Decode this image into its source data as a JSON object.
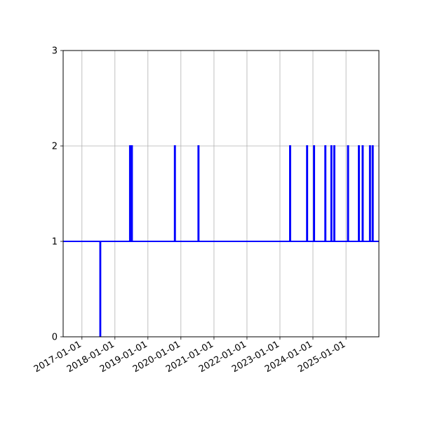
{
  "chart_data": {
    "type": "line",
    "title": "",
    "xlabel": "",
    "ylabel": "",
    "x_axis_type": "date",
    "xlim": [
      "2016-06-07",
      "2025-12-31"
    ],
    "ylim": [
      0,
      3
    ],
    "yticks": [
      0,
      1,
      2,
      3
    ],
    "xticks": [
      "2017-01-01",
      "2018-01-01",
      "2019-01-01",
      "2020-01-01",
      "2021-01-01",
      "2022-01-01",
      "2023-01-01",
      "2024-01-01",
      "2025-01-01"
    ],
    "grid": true,
    "line_color": "#0000ff",
    "series": [
      {
        "x": [
          "2016-06-07",
          "2017-07-20",
          "2017-07-20",
          "2017-07-26",
          "2017-07-26",
          "2018-06-14",
          "2018-06-14",
          "2018-06-22",
          "2018-06-22",
          "2018-06-27",
          "2018-06-27",
          "2018-07-01",
          "2018-07-01",
          "2018-07-06",
          "2018-07-06",
          "2018-07-11",
          "2018-07-11",
          "2019-10-23",
          "2019-10-23",
          "2019-10-30",
          "2019-10-30",
          "2020-07-10",
          "2020-07-10",
          "2020-07-17",
          "2020-07-17",
          "2023-04-20",
          "2023-04-20",
          "2023-04-27",
          "2023-04-27",
          "2023-10-25",
          "2023-10-25",
          "2023-11-01",
          "2023-11-01",
          "2024-01-10",
          "2024-01-10",
          "2024-01-17",
          "2024-01-17",
          "2024-05-14",
          "2024-05-14",
          "2024-05-21",
          "2024-05-21",
          "2024-07-20",
          "2024-07-20",
          "2024-07-27",
          "2024-07-27",
          "2024-08-21",
          "2024-08-21",
          "2024-08-28",
          "2024-08-28",
          "2025-01-20",
          "2025-01-20",
          "2025-01-27",
          "2025-01-27",
          "2025-05-20",
          "2025-05-20",
          "2025-05-27",
          "2025-05-27",
          "2025-07-01",
          "2025-07-01",
          "2025-07-08",
          "2025-07-08",
          "2025-09-20",
          "2025-09-20",
          "2025-09-27",
          "2025-09-27",
          "2025-10-20",
          "2025-10-20",
          "2025-10-27",
          "2025-10-27",
          "2025-12-31"
        ],
        "y": [
          1,
          1,
          0,
          0,
          1,
          1,
          2,
          2,
          1,
          1,
          2,
          2,
          1,
          1,
          2,
          2,
          1,
          1,
          2,
          2,
          1,
          1,
          2,
          2,
          1,
          1,
          2,
          2,
          1,
          1,
          2,
          2,
          1,
          1,
          2,
          2,
          1,
          1,
          2,
          2,
          1,
          1,
          2,
          2,
          1,
          1,
          2,
          2,
          1,
          1,
          2,
          2,
          1,
          1,
          2,
          2,
          1,
          1,
          2,
          2,
          1,
          1,
          2,
          2,
          1,
          1,
          2,
          2,
          1,
          1
        ]
      }
    ]
  }
}
